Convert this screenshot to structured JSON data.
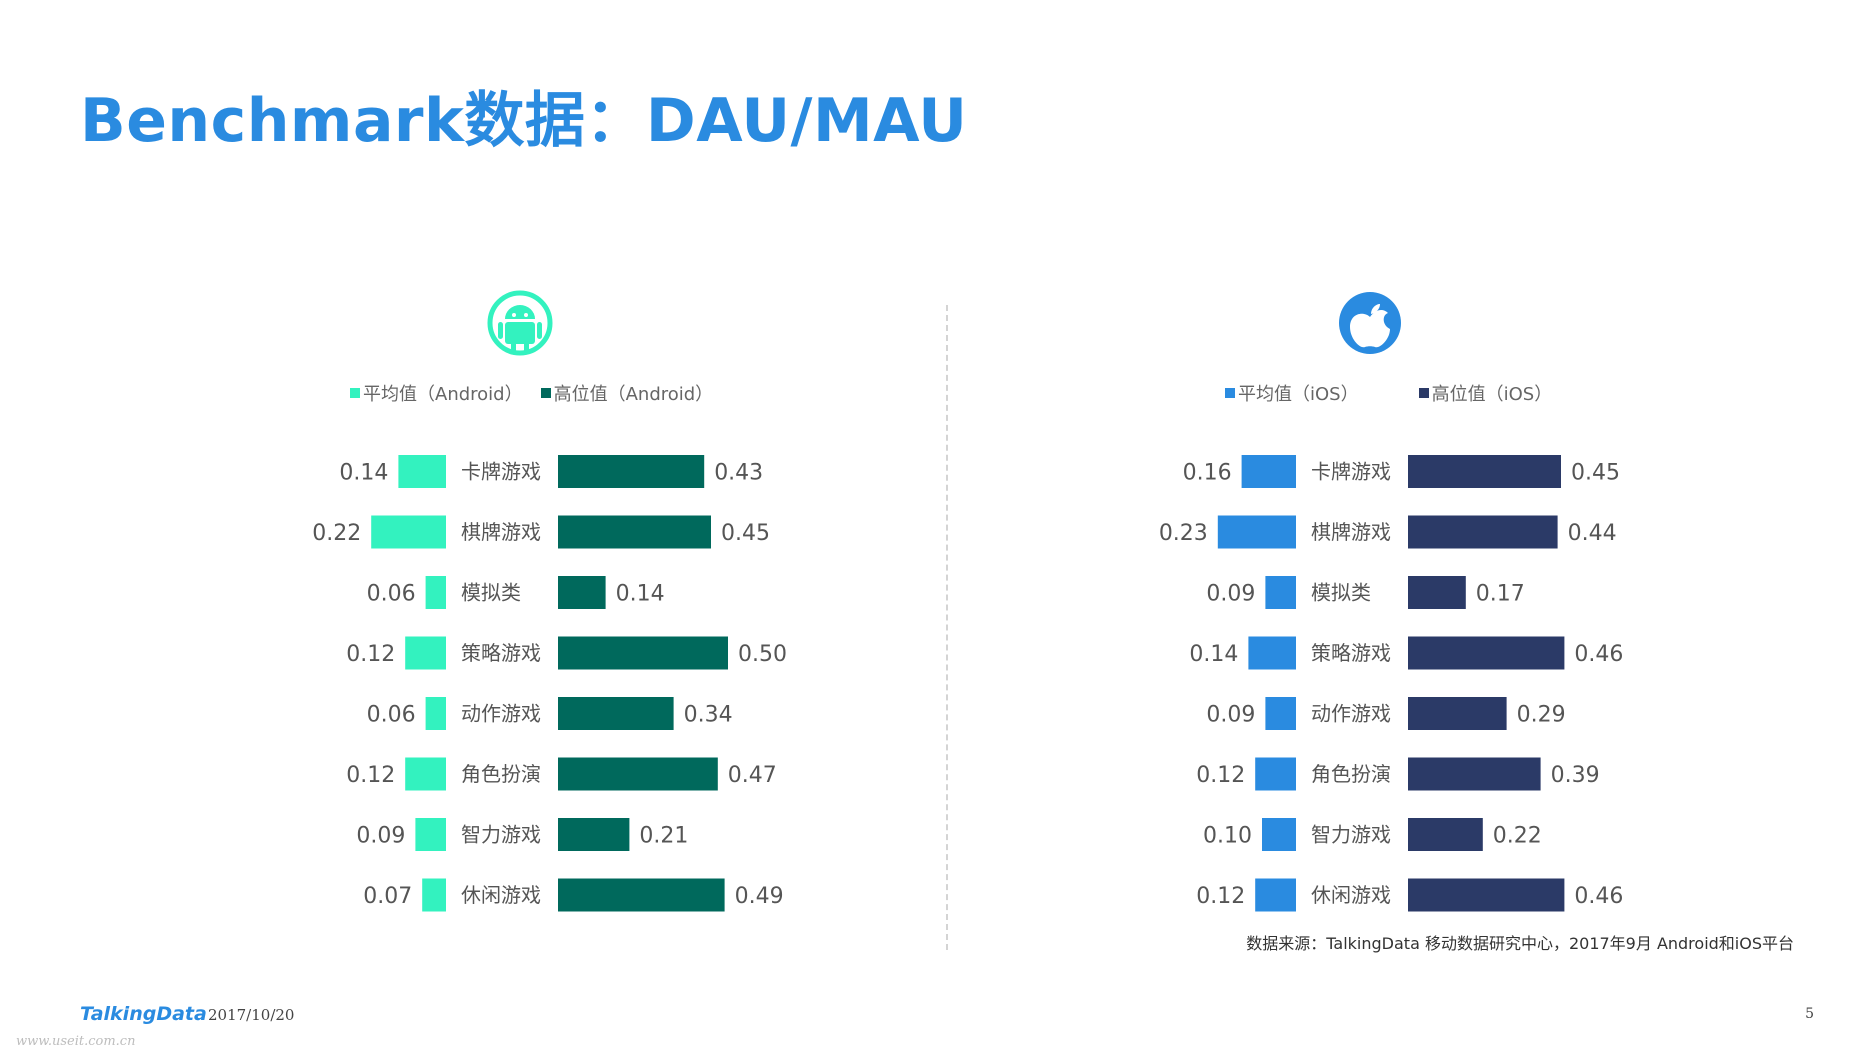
{
  "title": "Benchmark数据：DAU/MAU",
  "colors": {
    "title": "#2a8be0",
    "android_avg": "#33f2bf",
    "android_high": "#00695c",
    "ios_avg": "#2a8be0",
    "ios_high": "#2b3a67"
  },
  "chart_data": [
    {
      "type": "bar",
      "platform_icon": "android-icon",
      "categories": [
        "卡牌游戏",
        "棋牌游戏",
        "模拟类",
        "策略游戏",
        "动作游戏",
        "角色扮演",
        "智力游戏",
        "休闲游戏"
      ],
      "series": [
        {
          "name": "平均值（Android）",
          "values": [
            0.14,
            0.22,
            0.06,
            0.12,
            0.06,
            0.12,
            0.09,
            0.07
          ]
        },
        {
          "name": "高位值（Android）",
          "values": [
            0.43,
            0.45,
            0.14,
            0.5,
            0.34,
            0.47,
            0.21,
            0.49
          ]
        }
      ],
      "value_labels": {
        "avg": [
          "0.14",
          "0.22",
          "0.06",
          "0.12",
          "0.06",
          "0.12",
          "0.09",
          "0.07"
        ],
        "high": [
          "0.43",
          "0.45",
          "0.14",
          "0.50",
          "0.34",
          "0.47",
          "0.21",
          "0.49"
        ]
      },
      "legend_position": "top"
    },
    {
      "type": "bar",
      "platform_icon": "apple-icon",
      "categories": [
        "卡牌游戏",
        "棋牌游戏",
        "模拟类",
        "策略游戏",
        "动作游戏",
        "角色扮演",
        "智力游戏",
        "休闲游戏"
      ],
      "series": [
        {
          "name": "平均值（iOS）",
          "values": [
            0.16,
            0.23,
            0.09,
            0.14,
            0.09,
            0.12,
            0.1,
            0.12
          ]
        },
        {
          "name": "高位值（iOS）",
          "values": [
            0.45,
            0.44,
            0.17,
            0.46,
            0.29,
            0.39,
            0.22,
            0.46
          ]
        }
      ],
      "value_labels": {
        "avg": [
          "0.16",
          "0.23",
          "0.09",
          "0.14",
          "0.09",
          "0.12",
          "0.10",
          "0.12"
        ],
        "high": [
          "0.45",
          "0.44",
          "0.17",
          "0.46",
          "0.29",
          "0.39",
          "0.22",
          "0.46"
        ]
      },
      "legend_position": "top"
    }
  ],
  "source": "数据来源：TalkingData 移动数据研究中心，2017年9月 Android和iOS平台",
  "footer": {
    "logo": "TalkingData",
    "date": "2017/10/20",
    "page": "5",
    "watermark": "www.useit.com.cn"
  }
}
